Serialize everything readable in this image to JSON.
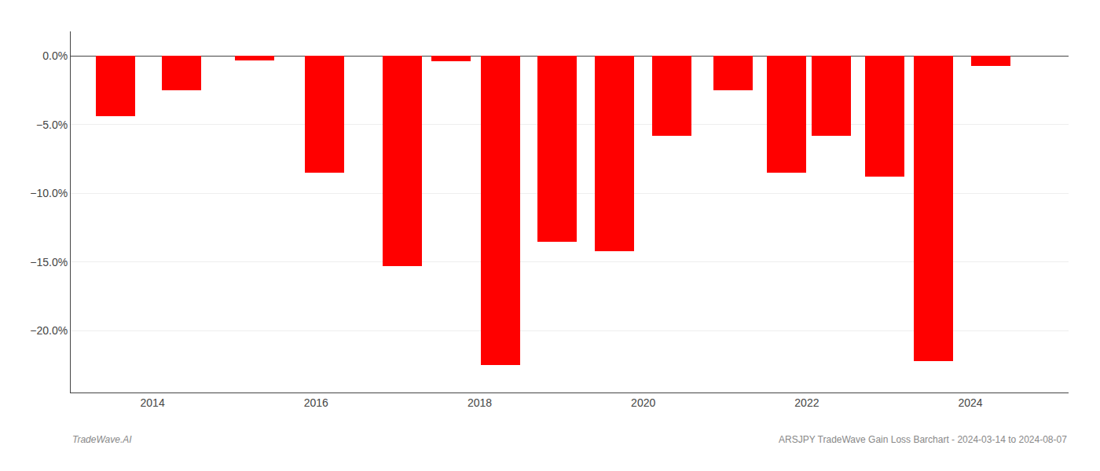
{
  "chart_data": {
    "type": "bar",
    "x": [
      2013.55,
      2014.35,
      2015.25,
      2016.1,
      2017.05,
      2017.65,
      2018.25,
      2018.95,
      2019.65,
      2020.35,
      2021.1,
      2021.75,
      2022.3,
      2022.95,
      2023.55,
      2024.25
    ],
    "values": [
      -4.4,
      -2.5,
      -0.3,
      -8.5,
      -15.3,
      -0.4,
      -22.5,
      -13.5,
      -14.2,
      -5.8,
      -2.5,
      -8.5,
      -5.8,
      -8.8,
      -22.2,
      -0.7
    ],
    "color": "#FF0000",
    "xlim": [
      2013.0,
      2025.2
    ],
    "xticks": [
      2014,
      2016,
      2018,
      2020,
      2022,
      2024
    ],
    "ylim": [
      -24.5,
      1.8
    ],
    "yticks": [
      {
        "value": 0.0,
        "label": "0.0%"
      },
      {
        "value": -5.0,
        "label": "−5.0%"
      },
      {
        "value": -10.0,
        "label": "−10.0%"
      },
      {
        "value": -15.0,
        "label": "−15.0%"
      },
      {
        "value": -20.0,
        "label": "−20.0%"
      }
    ],
    "grid": true,
    "annotations": [
      "TradeWave.AI",
      "ARSJPY TradeWave Gain Loss Barchart - 2024-03-14 to 2024-08-07"
    ]
  }
}
